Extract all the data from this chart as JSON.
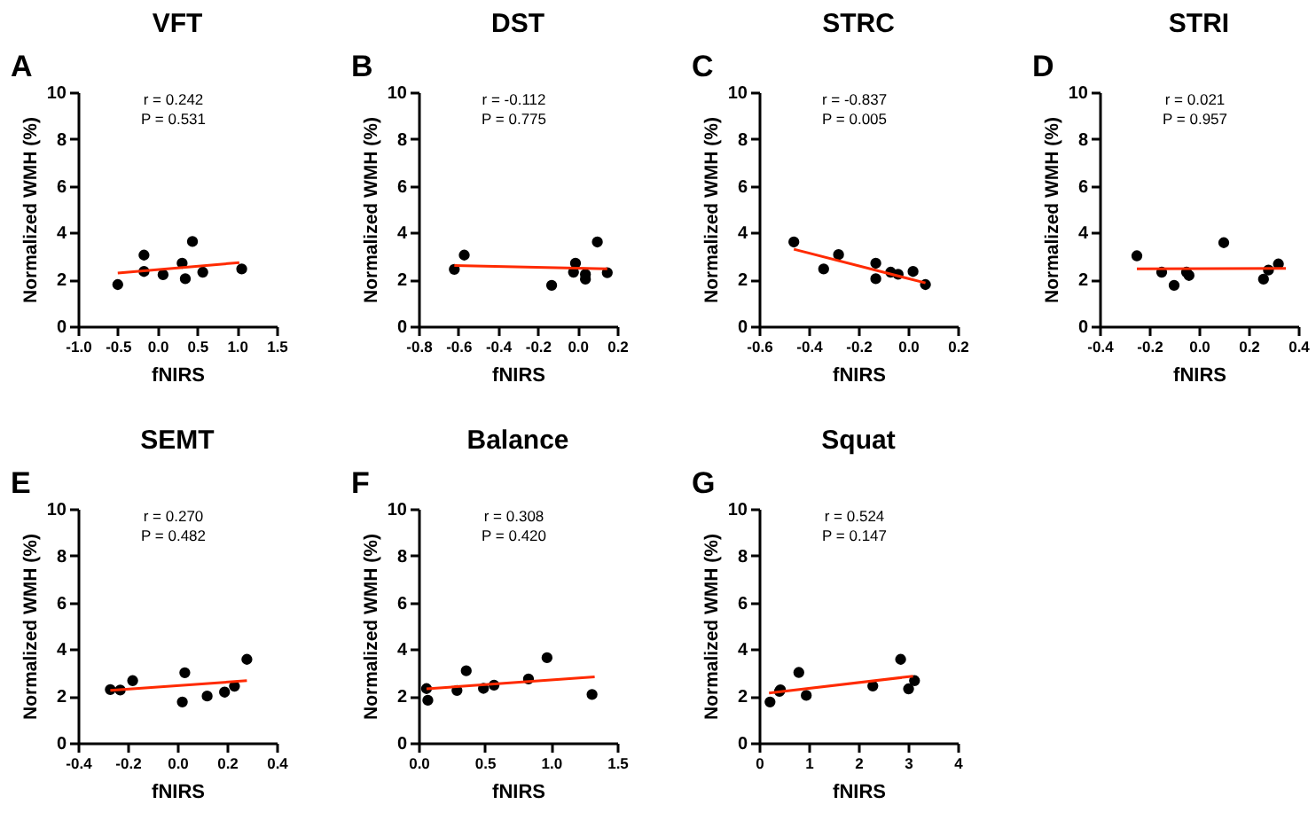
{
  "chart_data": [
    {
      "type": "scatter",
      "title": "VFT",
      "xlabel": "fNIRS",
      "ylabel": "Normalized WMH (%)",
      "annotations": [
        "A",
        "r = 0.242",
        "P = 0.531"
      ],
      "xlim": [
        -1.0,
        1.5
      ],
      "xticks": [
        {
          "value": -1.0,
          "label": "-1.0"
        },
        {
          "value": -0.5,
          "label": "-0.5"
        },
        {
          "value": 0,
          "label": "0.0"
        },
        {
          "value": 0.5,
          "label": "0.5"
        },
        {
          "value": 1.0,
          "label": "1.0"
        },
        {
          "value": 1.5,
          "label": "1.5"
        }
      ],
      "ylim": [
        0,
        10
      ],
      "yticks": [
        0,
        2,
        4,
        6,
        8,
        10
      ],
      "grid": false,
      "series": [
        {
          "marker": "circle",
          "color": "#000000",
          "x": [
            -0.5,
            -0.17,
            -0.17,
            0.07,
            0.31,
            0.35,
            0.44,
            0.57,
            1.06
          ],
          "values": [
            1.78,
            3.04,
            2.34,
            2.2,
            2.69,
            2.03,
            3.62,
            2.31,
            2.45
          ]
        },
        {
          "type": "line",
          "marker": "none",
          "color": "#ff2a00",
          "x": [
            -0.5,
            1.03
          ],
          "values": [
            2.27,
            2.72
          ]
        }
      ]
    },
    {
      "type": "scatter",
      "title": "DST",
      "xlabel": "fNIRS",
      "ylabel": "Normalized WMH (%)",
      "annotations": [
        "B",
        "r = -0.112",
        "P = 0.775"
      ],
      "xlim": [
        -0.8,
        0.2
      ],
      "xticks": [
        {
          "value": -0.8,
          "label": "-0.8"
        },
        {
          "value": -0.6,
          "label": "-0.6"
        },
        {
          "value": -0.4,
          "label": "-0.4"
        },
        {
          "value": -0.2,
          "label": "-0.2"
        },
        {
          "value": 0,
          "label": "0.0"
        },
        {
          "value": 0.2,
          "label": "0.2"
        }
      ],
      "ylim": [
        0,
        10
      ],
      "yticks": [
        0,
        2,
        4,
        6,
        8,
        10
      ],
      "grid": false,
      "series": [
        {
          "marker": "circle",
          "color": "#000000",
          "x": [
            -0.62,
            -0.57,
            -0.13,
            -0.02,
            -0.01,
            0.04,
            0.04,
            0.1,
            0.15
          ],
          "values": [
            2.43,
            3.04,
            1.75,
            2.31,
            2.69,
            2.22,
            2.01,
            3.6,
            2.29
          ]
        },
        {
          "type": "line",
          "marker": "none",
          "color": "#ff2a00",
          "x": [
            -0.62,
            0.15
          ],
          "values": [
            2.59,
            2.45
          ]
        }
      ]
    },
    {
      "type": "scatter",
      "title": "STRC",
      "xlabel": "fNIRS",
      "ylabel": "Normalized WMH (%)",
      "annotations": [
        "C",
        "r = -0.837",
        "P = 0.005"
      ],
      "xlim": [
        -0.6,
        0.2
      ],
      "xticks": [
        {
          "value": -0.6,
          "label": "-0.6"
        },
        {
          "value": -0.4,
          "label": "-0.4"
        },
        {
          "value": -0.2,
          "label": "-0.2"
        },
        {
          "value": 0,
          "label": "0.0"
        },
        {
          "value": 0.2,
          "label": "0.2"
        }
      ],
      "ylim": [
        0,
        10
      ],
      "yticks": [
        0,
        2,
        4,
        6,
        8,
        10
      ],
      "grid": false,
      "series": [
        {
          "marker": "circle",
          "color": "#000000",
          "x": [
            -0.46,
            -0.34,
            -0.28,
            -0.13,
            -0.13,
            -0.07,
            -0.04,
            0.02,
            0.07
          ],
          "values": [
            3.6,
            2.45,
            3.06,
            2.69,
            2.03,
            2.31,
            2.22,
            2.34,
            1.78
          ]
        },
        {
          "type": "line",
          "marker": "none",
          "color": "#ff2a00",
          "x": [
            -0.46,
            0.07
          ],
          "values": [
            3.29,
            1.85
          ]
        }
      ]
    },
    {
      "type": "scatter",
      "title": "STRI",
      "xlabel": "fNIRS",
      "ylabel": "Normalized WMH (%)",
      "annotations": [
        "D",
        "r = 0.021",
        "P = 0.957"
      ],
      "xlim": [
        -0.4,
        0.4
      ],
      "xticks": [
        {
          "value": -0.4,
          "label": "-0.4"
        },
        {
          "value": -0.2,
          "label": "-0.2"
        },
        {
          "value": 0,
          "label": "0.0"
        },
        {
          "value": 0.2,
          "label": "0.2"
        },
        {
          "value": 0.4,
          "label": "0.4"
        }
      ],
      "ylim": [
        0,
        10
      ],
      "yticks": [
        0,
        2,
        4,
        6,
        8,
        10
      ],
      "grid": false,
      "series": [
        {
          "marker": "circle",
          "color": "#000000",
          "x": [
            -0.25,
            -0.15,
            -0.1,
            -0.05,
            -0.04,
            0.1,
            0.26,
            0.28,
            0.32
          ],
          "values": [
            3.01,
            2.31,
            1.75,
            2.31,
            2.17,
            3.57,
            2.01,
            2.4,
            2.66
          ]
        },
        {
          "type": "line",
          "marker": "none",
          "color": "#ff2a00",
          "x": [
            -0.25,
            0.35
          ],
          "values": [
            2.45,
            2.47
          ]
        }
      ]
    },
    {
      "type": "scatter",
      "title": "SEMT",
      "xlabel": "fNIRS",
      "ylabel": "Normalized WMH (%)",
      "annotations": [
        "E",
        "r = 0.270",
        "P = 0.482"
      ],
      "xlim": [
        -0.4,
        0.4
      ],
      "xticks": [
        {
          "value": -0.4,
          "label": "-0.4"
        },
        {
          "value": -0.2,
          "label": "-0.2"
        },
        {
          "value": 0,
          "label": "0.0"
        },
        {
          "value": 0.2,
          "label": "0.2"
        },
        {
          "value": 0.4,
          "label": "0.4"
        }
      ],
      "ylim": [
        0,
        10
      ],
      "yticks": [
        0,
        2,
        4,
        6,
        8,
        10
      ],
      "grid": false,
      "series": [
        {
          "marker": "circle",
          "color": "#000000",
          "x": [
            -0.27,
            -0.23,
            -0.18,
            0.02,
            0.03,
            0.12,
            0.19,
            0.23,
            0.28
          ],
          "values": [
            2.28,
            2.26,
            2.66,
            1.75,
            3.0,
            2.0,
            2.17,
            2.42,
            3.57
          ]
        },
        {
          "type": "line",
          "marker": "none",
          "color": "#ff2a00",
          "x": [
            -0.27,
            0.28
          ],
          "values": [
            2.24,
            2.66
          ]
        }
      ]
    },
    {
      "type": "scatter",
      "title": "Balance",
      "xlabel": "fNIRS",
      "ylabel": "Normalized WMH (%)",
      "annotations": [
        "F",
        "r = 0.308",
        "P = 0.420"
      ],
      "xlim": [
        0,
        1.5
      ],
      "xticks": [
        {
          "value": 0,
          "label": "0.0"
        },
        {
          "value": 0.5,
          "label": "0.5"
        },
        {
          "value": 1.0,
          "label": "1.0"
        },
        {
          "value": 1.5,
          "label": "1.5"
        }
      ],
      "ylim": [
        0,
        10
      ],
      "yticks": [
        0,
        2,
        4,
        6,
        8,
        10
      ],
      "grid": false,
      "series": [
        {
          "marker": "circle",
          "color": "#000000",
          "x": [
            0.06,
            0.07,
            0.29,
            0.36,
            0.49,
            0.57,
            0.83,
            0.97,
            1.31
          ],
          "values": [
            2.32,
            1.82,
            2.24,
            3.08,
            2.33,
            2.47,
            2.73,
            3.64,
            2.07
          ]
        },
        {
          "type": "line",
          "marker": "none",
          "color": "#ff2a00",
          "x": [
            0.06,
            1.33
          ],
          "values": [
            2.31,
            2.82
          ]
        }
      ]
    },
    {
      "type": "scatter",
      "title": "Squat",
      "xlabel": "fNIRS",
      "ylabel": "Normalized WMH (%)",
      "annotations": [
        "G",
        "r = 0.524",
        "P = 0.147"
      ],
      "xlim": [
        0,
        4
      ],
      "xticks": [
        0,
        1,
        2,
        3,
        4
      ],
      "ylim": [
        0,
        10
      ],
      "yticks": [
        0,
        2,
        4,
        6,
        8,
        10
      ],
      "grid": false,
      "series": [
        {
          "marker": "circle",
          "color": "#000000",
          "x": [
            0.22,
            0.41,
            0.43,
            0.8,
            0.95,
            2.29,
            2.85,
            3.01,
            3.13
          ],
          "values": [
            1.75,
            2.2,
            2.27,
            3.01,
            2.03,
            2.43,
            3.57,
            2.31,
            2.66
          ]
        },
        {
          "type": "line",
          "marker": "none",
          "color": "#ff2a00",
          "x": [
            0.2,
            3.1
          ],
          "values": [
            2.13,
            2.85
          ]
        }
      ]
    }
  ]
}
